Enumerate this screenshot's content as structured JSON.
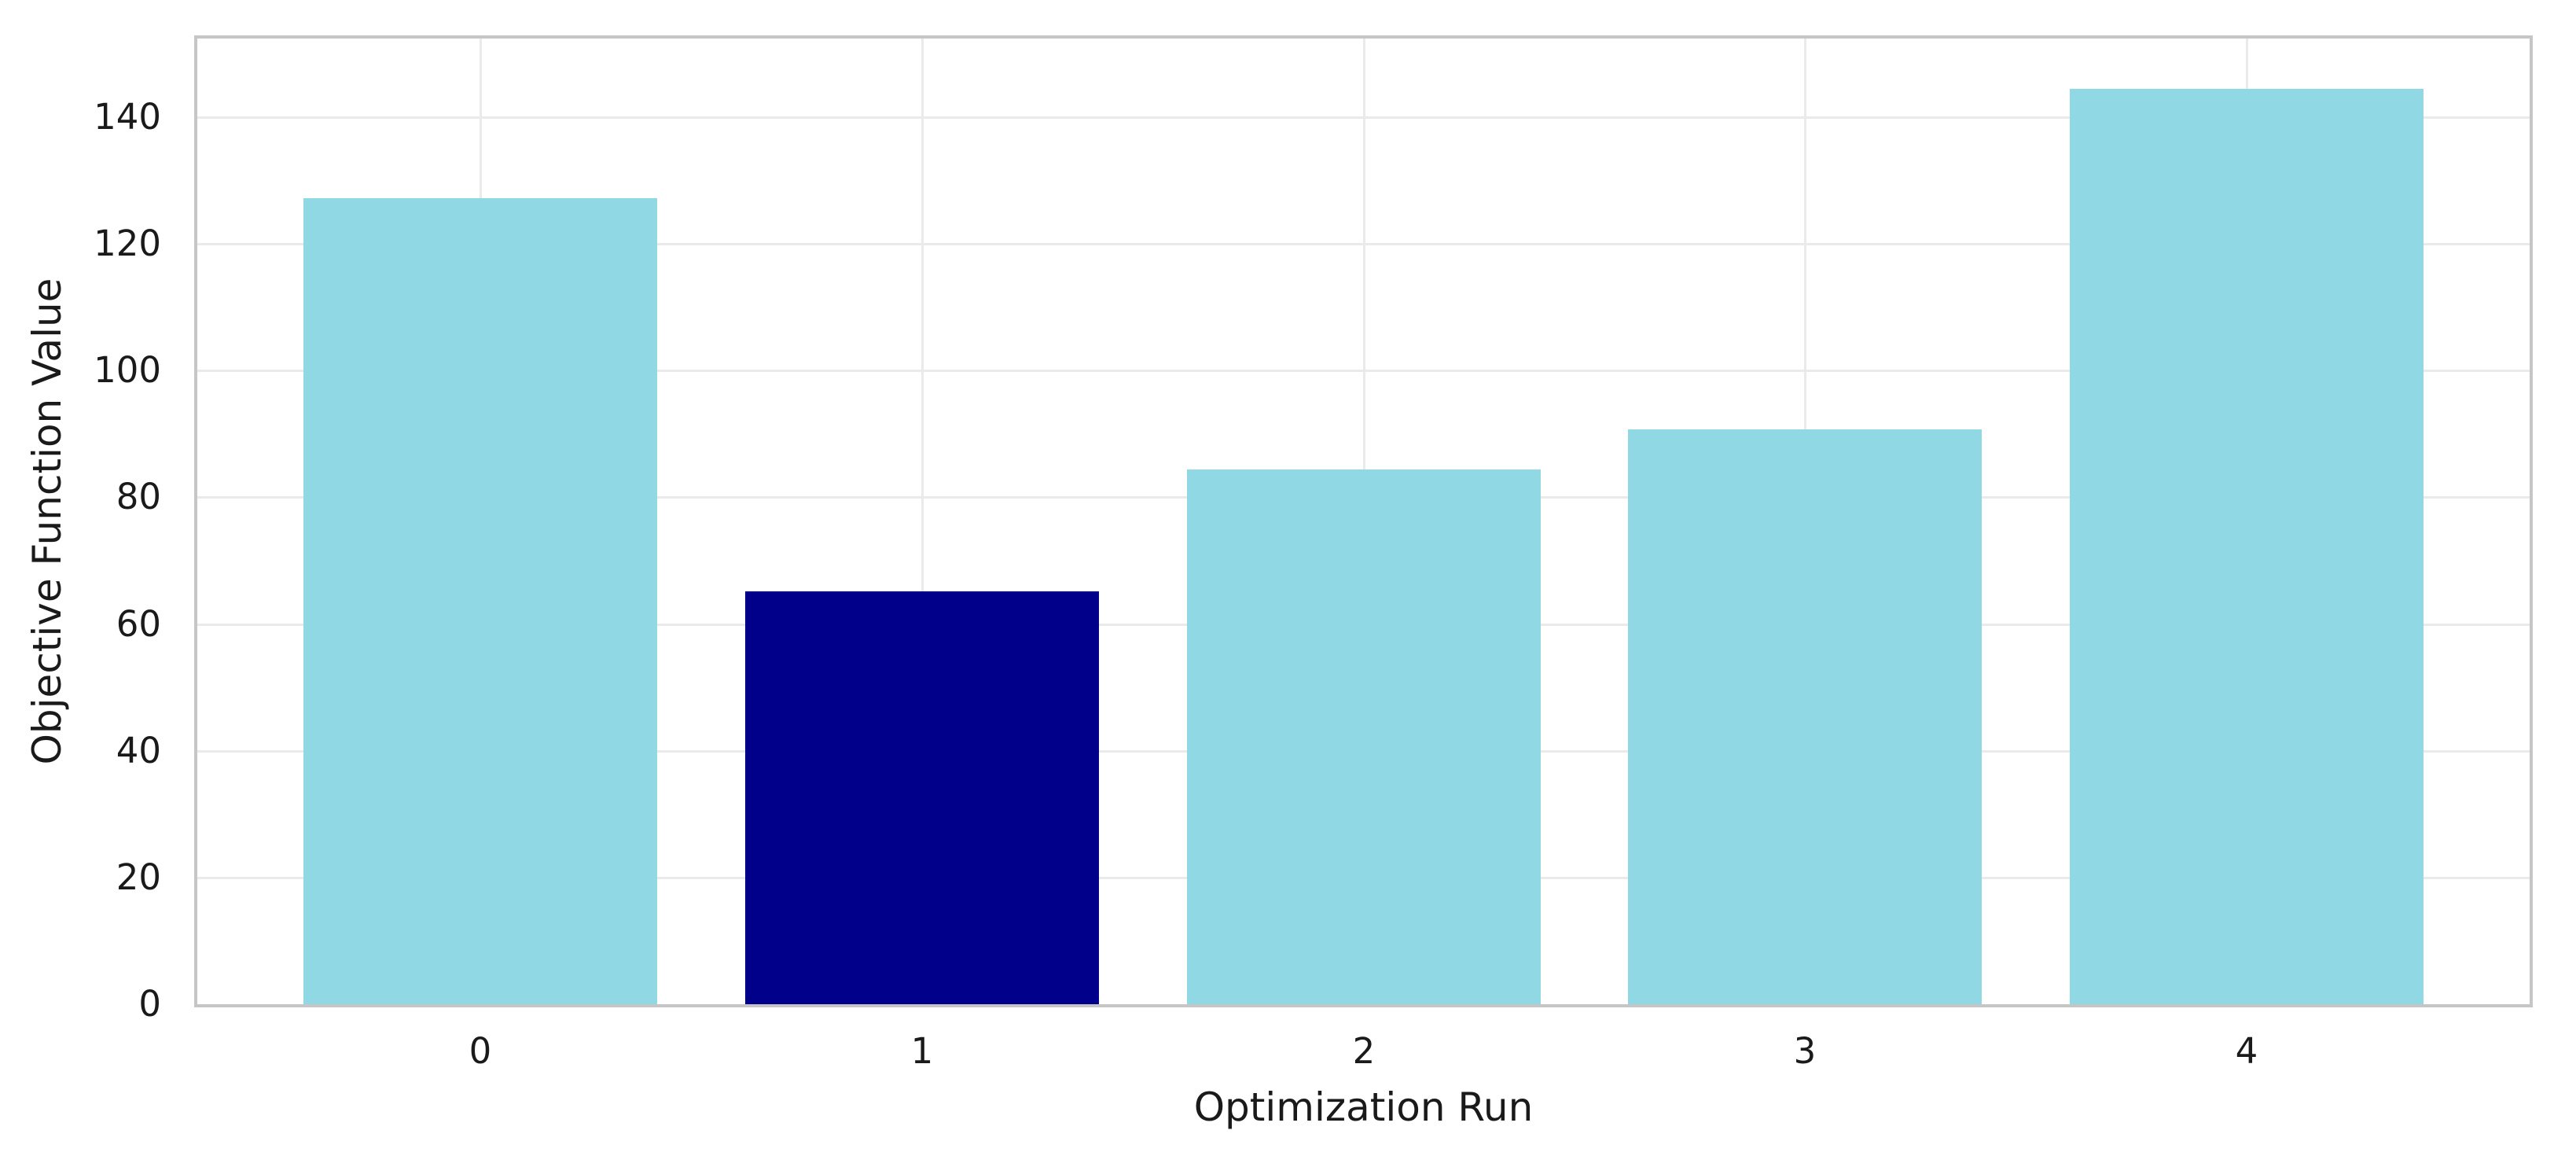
{
  "figure": {
    "background": "#ffffff"
  },
  "chart_data": {
    "type": "bar",
    "title": "",
    "xlabel": "Optimization Run",
    "ylabel": "Objective Function Value",
    "categories": [
      "0",
      "1",
      "2",
      "3",
      "4"
    ],
    "values": [
      127.2,
      65.1,
      84.4,
      90.7,
      144.4
    ],
    "bar_colors": [
      "#90d8e4",
      "#00008B",
      "#90d8e4",
      "#90d8e4",
      "#90d8e4"
    ],
    "highlighted_run_index": 1,
    "y_ticks": [
      0,
      20,
      40,
      60,
      80,
      100,
      120,
      140
    ],
    "ylim": [
      0,
      152.4
    ],
    "xlim": [
      -0.64,
      4.64
    ],
    "bar_width_units": 0.8,
    "grid": true,
    "legend": "none",
    "colors": {
      "default_bar": "#90d8e4",
      "highlight_bar": "#00008B",
      "grid": "#eaeaea",
      "spine": "#c6c6c6",
      "text": "#1a1a1a"
    }
  }
}
